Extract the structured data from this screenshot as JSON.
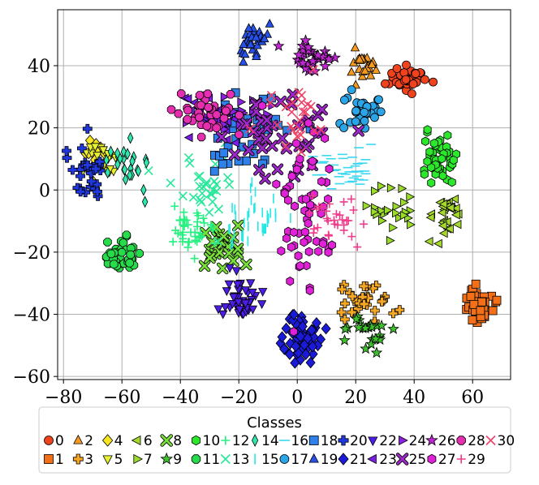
{
  "chart_data": {
    "type": "scatter",
    "title": "",
    "xlabel": "",
    "ylabel": "",
    "xlim": [
      -82,
      73
    ],
    "ylim": [
      -61,
      58
    ],
    "grid": true,
    "x_ticks": [
      -80,
      -60,
      -40,
      -20,
      0,
      20,
      40,
      60
    ],
    "y_ticks": [
      -60,
      -40,
      -20,
      0,
      20,
      40
    ],
    "x_tick_labels": [
      "−80",
      "−60",
      "−40",
      "−20",
      "0",
      "20",
      "40",
      "60"
    ],
    "y_tick_labels": [
      "−60",
      "−40",
      "−20",
      "0",
      "20",
      "40"
    ],
    "legend": {
      "title": "Classes",
      "placement": "bottom",
      "columns": 16,
      "entries": [
        "0",
        "1",
        "2",
        "3",
        "4",
        "5",
        "6",
        "7",
        "8",
        "9",
        "10",
        "11",
        "12",
        "13",
        "14",
        "15",
        "16",
        "17",
        "18",
        "19",
        "20",
        "21",
        "22",
        "23",
        "24",
        "25",
        "26",
        "27",
        "28",
        "29",
        "30"
      ]
    },
    "clusters": [
      {
        "series": "0",
        "marker": "circle",
        "color": "#f0421c",
        "cx": 38,
        "cy": 36,
        "sx": 3,
        "sy": 2,
        "n": 40
      },
      {
        "series": "1",
        "marker": "square",
        "color": "#f37018",
        "cx": 62,
        "cy": -37,
        "sx": 2.5,
        "sy": 3,
        "n": 45
      },
      {
        "series": "2",
        "marker": "triangle",
        "color": "#f59a1f",
        "cx": 23,
        "cy": 42,
        "sx": 2.5,
        "sy": 3,
        "n": 25
      },
      {
        "series": "3",
        "marker": "plus",
        "color": "#f5a623",
        "cx": 24,
        "cy": -36,
        "sx": 4,
        "sy": 3,
        "n": 30
      },
      {
        "series": "4",
        "marker": "diamond",
        "color": "#f6e51f",
        "cx": -68,
        "cy": 12,
        "sx": 3,
        "sy": 3,
        "n": 20
      },
      {
        "series": "5",
        "marker": "triangle_down",
        "color": "#e8f032",
        "cx": -68,
        "cy": 10,
        "sx": 3,
        "sy": 3,
        "n": 20
      },
      {
        "series": "6",
        "marker": "triangle_left",
        "color": "#a5d82a",
        "cx": 51,
        "cy": -8,
        "sx": 3,
        "sy": 3,
        "n": 30
      },
      {
        "series": "7",
        "marker": "triangle_right",
        "color": "#9bdc2a",
        "cx": 33,
        "cy": -7,
        "sx": 4,
        "sy": 4,
        "n": 25
      },
      {
        "series": "8",
        "marker": "x_thick",
        "color": "#79e03a",
        "cx": -25,
        "cy": -18,
        "sx": 4,
        "sy": 4,
        "n": 25
      },
      {
        "series": "9",
        "marker": "star",
        "color": "#3fbf2e",
        "cx": 22,
        "cy": -46,
        "sx": 4,
        "sy": 3,
        "n": 25
      },
      {
        "series": "10",
        "marker": "hexagon",
        "color": "#2be82b",
        "cx": 48,
        "cy": 10,
        "sx": 3,
        "sy": 4,
        "n": 50
      },
      {
        "series": "11",
        "marker": "octagon",
        "color": "#26dc4a",
        "cx": -60,
        "cy": -22,
        "sx": 3,
        "sy": 3,
        "n": 40
      },
      {
        "series": "12",
        "marker": "thin_plus",
        "color": "#25f080",
        "cx": -38,
        "cy": -12,
        "sx": 4,
        "sy": 3,
        "n": 40
      },
      {
        "series": "13",
        "marker": "thin_x",
        "color": "#27e89a",
        "cx": -30,
        "cy": 2,
        "sx": 6,
        "sy": 6,
        "n": 30
      },
      {
        "series": "14",
        "marker": "thin_diamond",
        "color": "#2de8b0",
        "cx": -58,
        "cy": 9,
        "sx": 4,
        "sy": 4,
        "n": 25
      },
      {
        "series": "15",
        "marker": "vline",
        "color": "#22e8e6",
        "cx": -15,
        "cy": -10,
        "sx": 5,
        "sy": 5,
        "n": 40
      },
      {
        "series": "16",
        "marker": "hline",
        "color": "#3ad8f0",
        "cx": 16,
        "cy": 7,
        "sx": 5,
        "sy": 3,
        "n": 40
      },
      {
        "series": "17",
        "marker": "circle",
        "color": "#2aa6e8",
        "cx": 22,
        "cy": 26,
        "sx": 3,
        "sy": 3,
        "n": 35
      },
      {
        "series": "18",
        "marker": "square",
        "color": "#2f80e8",
        "cx": -18,
        "cy": 20,
        "sx": 7,
        "sy": 7,
        "n": 40
      },
      {
        "series": "19",
        "marker": "triangle",
        "color": "#2650e8",
        "cx": -15,
        "cy": 48,
        "sx": 3,
        "sy": 3,
        "n": 30
      },
      {
        "series": "20",
        "marker": "plus",
        "color": "#2038e0",
        "cx": -72,
        "cy": 5,
        "sx": 4,
        "sy": 5,
        "n": 30
      },
      {
        "series": "21",
        "marker": "diamond",
        "color": "#1a1ad8",
        "cx": 1,
        "cy": -48,
        "sx": 3,
        "sy": 4,
        "n": 60
      },
      {
        "series": "22",
        "marker": "triangle_down",
        "color": "#4c1de6",
        "cx": -19,
        "cy": -35,
        "sx": 3,
        "sy": 4,
        "n": 45
      },
      {
        "series": "23",
        "marker": "triangle_left",
        "color": "#7a1de8",
        "cx": -30,
        "cy": 23,
        "sx": 6,
        "sy": 4,
        "n": 30
      },
      {
        "series": "24",
        "marker": "triangle_right",
        "color": "#8c22e0",
        "cx": -22,
        "cy": 25,
        "sx": 6,
        "sy": 3,
        "n": 25
      },
      {
        "series": "25",
        "marker": "x_thick",
        "color": "#9d27c8",
        "cx": -5,
        "cy": 18,
        "sx": 9,
        "sy": 8,
        "n": 40
      },
      {
        "series": "26",
        "marker": "star",
        "color": "#c026d3",
        "cx": 5,
        "cy": 42,
        "sx": 4,
        "sy": 3,
        "n": 30
      },
      {
        "series": "27",
        "marker": "hexagon",
        "color": "#e021d8",
        "cx": 2,
        "cy": -5,
        "sx": 5,
        "sy": 14,
        "n": 60
      },
      {
        "series": "28",
        "marker": "octagon",
        "color": "#e52fb0",
        "cx": -30,
        "cy": 25,
        "sx": 6,
        "sy": 3,
        "n": 40
      },
      {
        "series": "29",
        "marker": "thin_plus",
        "color": "#f03b8a",
        "cx": 14,
        "cy": -10,
        "sx": 5,
        "sy": 4,
        "n": 30
      },
      {
        "series": "30",
        "marker": "thin_x",
        "color": "#f04068",
        "cx": 0,
        "cy": 20,
        "sx": 6,
        "sy": 6,
        "n": 25
      }
    ]
  }
}
